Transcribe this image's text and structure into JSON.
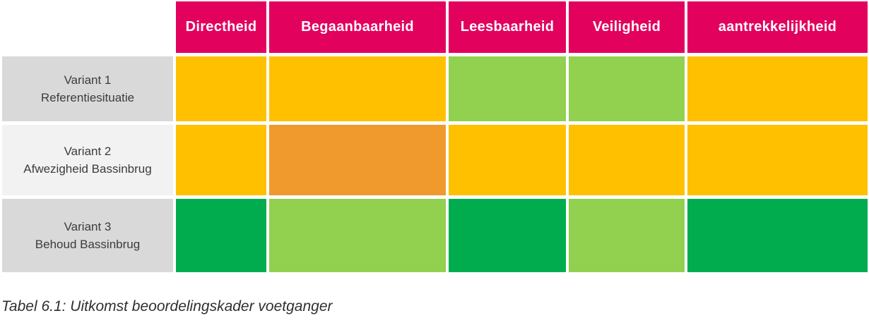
{
  "table": {
    "column_headers": [
      "Directheid",
      "Begaanbaarheid",
      "Leesbaarheid",
      "Veiligheid",
      "aantrekkelijkheid"
    ],
    "rows": [
      {
        "label_line1": "Variant 1",
        "label_line2": "Referentiesituatie",
        "scores": [
          "amber",
          "amber",
          "light-green",
          "light-green",
          "amber"
        ]
      },
      {
        "label_line1": "Variant 2",
        "label_line2": "Afwezigheid Bassinbrug",
        "scores": [
          "amber",
          "orange",
          "amber",
          "amber",
          "amber"
        ]
      },
      {
        "label_line1": "Variant 3",
        "label_line2": "Behoud Bassinbrug",
        "scores": [
          "dark-green",
          "light-green",
          "dark-green",
          "light-green",
          "dark-green"
        ]
      }
    ],
    "row_label_backgrounds": [
      "#D9D9D9",
      "#F2F2F2",
      "#D9D9D9"
    ]
  },
  "colors": {
    "header_background": "#E3015E",
    "header_text": "#FFFFFF",
    "label_text": "#3C3C3C",
    "caption_text": "#2F2F2F",
    "cell_gap": "#FFFFFF",
    "score_colors": {
      "amber": "#FFC000",
      "orange": "#F0992D",
      "light-green": "#92D050",
      "dark-green": "#00AC4E"
    }
  },
  "caption": {
    "text": "Tabel 6.1: Uitkomst beoordelingskader voetganger"
  }
}
